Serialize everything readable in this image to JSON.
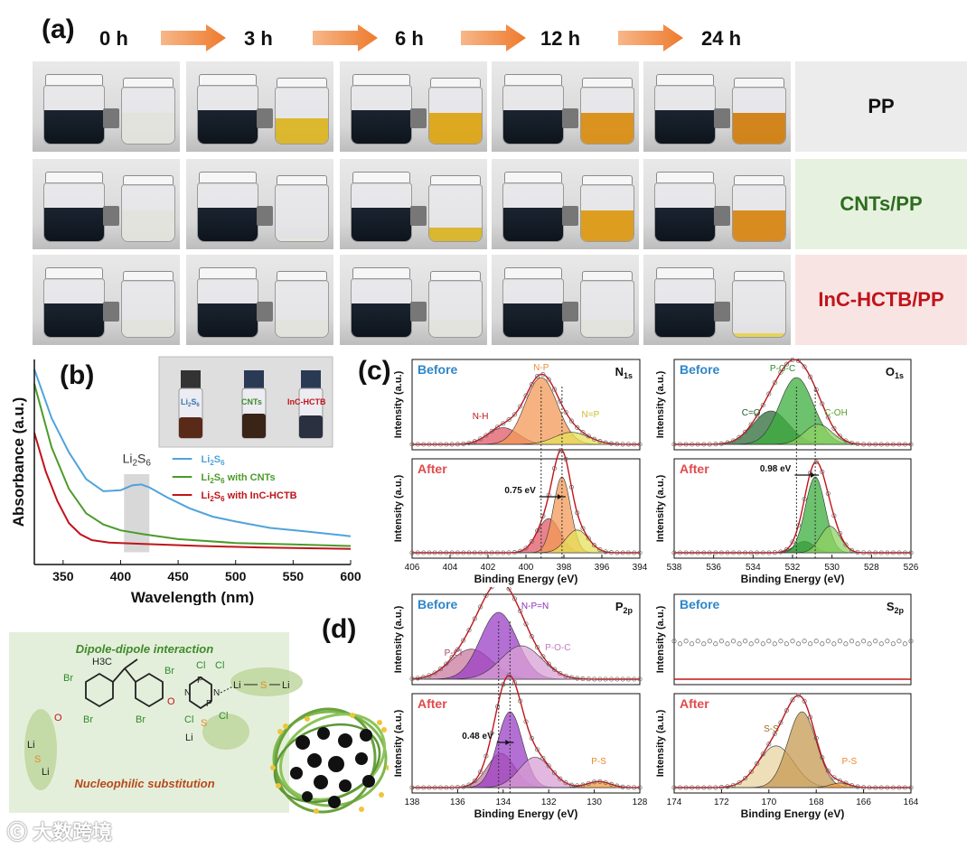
{
  "panel_a": {
    "letter": "(a)",
    "times": [
      "0 h",
      "3 h",
      "6 h",
      "12 h",
      "24 h"
    ],
    "rows": [
      {
        "label": "PP",
        "label_color": "#111111",
        "bg": "#ececec",
        "right_colors": [
          "#e2e2dc",
          "#d9b21a",
          "#dba20a",
          "#d88a08",
          "#cf7a06"
        ],
        "right_level": [
          0.55,
          0.45,
          0.55,
          0.55,
          0.55
        ]
      },
      {
        "label": "CNTs/PP",
        "label_color": "#2e6b1f",
        "bg": "#e6f2df",
        "right_colors": [
          "#e2e2dc",
          "#e6e6da",
          "#d8b21c",
          "#dc960a",
          "#d6820a"
        ],
        "right_level": [
          0.55,
          0.05,
          0.25,
          0.55,
          0.55
        ]
      },
      {
        "label": "InC-HCTB/PP",
        "label_color": "#c0141a",
        "bg": "#f9e4e4",
        "right_colors": [
          "#e2e2dc",
          "#e2e2dc",
          "#e2e2dc",
          "#e2e2dc",
          "#e8d04a"
        ],
        "right_level": [
          0.3,
          0.3,
          0.3,
          0.3,
          0.06
        ]
      }
    ]
  },
  "panel_b": {
    "letter": "(b)",
    "inset_labels": [
      "Li2S6",
      "CNTs",
      "InC-HCTB"
    ],
    "annotation": "Li2S6"
  },
  "panel_c": {
    "letter": "(c)"
  },
  "panel_d": {
    "letter": "(d)",
    "dipole_text": "Dipole-dipole interaction",
    "nucleophilic_text": "Nucleophilic substitution",
    "atoms": {
      "br": "Br",
      "o": "O",
      "li": "Li",
      "s": "S",
      "cl": "Cl",
      "p": "P",
      "n": "N",
      "h3c": "H3C"
    }
  },
  "watermark": "大数跨境",
  "chart_data": [
    {
      "type": "line",
      "title": "",
      "xlabel": "Wavelength (nm)",
      "ylabel": "Absorbance (a.u.)",
      "xlim": [
        325,
        600
      ],
      "xticks": [
        350,
        400,
        450,
        500,
        550,
        600
      ],
      "highlight_band": [
        403,
        425
      ],
      "series": [
        {
          "name": "Li2S6",
          "color": "#4fa3dc",
          "x": [
            325,
            340,
            355,
            370,
            385,
            400,
            410,
            418,
            425,
            440,
            460,
            480,
            500,
            530,
            560,
            600
          ],
          "y": [
            4.0,
            3.0,
            2.3,
            1.75,
            1.5,
            1.52,
            1.62,
            1.64,
            1.58,
            1.38,
            1.15,
            0.98,
            0.88,
            0.75,
            0.68,
            0.58
          ]
        },
        {
          "name": "Li2S6 with CNTs",
          "color": "#4c9a2a",
          "x": [
            325,
            340,
            355,
            370,
            385,
            400,
            420,
            450,
            500,
            550,
            600
          ],
          "y": [
            3.7,
            2.4,
            1.55,
            1.05,
            0.82,
            0.7,
            0.62,
            0.52,
            0.44,
            0.41,
            0.38
          ]
        },
        {
          "name": "Li2S6 with InC-HCTB",
          "color": "#c0141a",
          "x": [
            325,
            335,
            345,
            355,
            365,
            375,
            390,
            420,
            470,
            520,
            600
          ],
          "y": [
            2.7,
            1.9,
            1.3,
            0.85,
            0.62,
            0.5,
            0.45,
            0.42,
            0.38,
            0.35,
            0.32
          ]
        }
      ],
      "legend": [
        "Li2S6",
        "Li2S6 with CNTs",
        "Li2S6 with InC-HCTB"
      ]
    },
    {
      "type": "line",
      "title": "N1s",
      "xlabel": "Binding Energy (eV)",
      "ylabel": "Intensity (a.u.)",
      "xlim": [
        406,
        394
      ],
      "xticks": [
        406,
        404,
        402,
        400,
        398,
        396,
        394
      ],
      "before": {
        "label": "Before",
        "peaks": [
          {
            "name": "N-H",
            "center": 401.2,
            "height": 0.25,
            "width": 0.8,
            "color": "#e05a67"
          },
          {
            "name": "N-P",
            "center": 399.2,
            "height": 1.0,
            "width": 0.85,
            "color": "#f39a57"
          },
          {
            "name": "N=P",
            "center": 397.6,
            "height": 0.18,
            "width": 0.9,
            "color": "#e6e05a"
          }
        ]
      },
      "after": {
        "label": "After",
        "shift": "0.75 eV",
        "peaks": [
          {
            "name": "N-H",
            "center": 398.8,
            "height": 0.45,
            "width": 0.6,
            "color": "#e05a67"
          },
          {
            "name": "N-P",
            "center": 398.1,
            "height": 1.0,
            "width": 0.45,
            "color": "#f39a57"
          },
          {
            "name": "N=P",
            "center": 397.3,
            "height": 0.3,
            "width": 0.6,
            "color": "#e6e05a"
          }
        ]
      }
    },
    {
      "type": "line",
      "title": "O1s",
      "xlabel": "Binding Energy (eV)",
      "ylabel": "Intensity (a.u.)",
      "xlim": [
        538,
        526
      ],
      "xticks": [
        538,
        536,
        534,
        532,
        530,
        528,
        526
      ],
      "before": {
        "label": "Before",
        "peaks": [
          {
            "name": "C=O",
            "center": 533.1,
            "height": 0.5,
            "width": 0.9,
            "color": "#2e6b3a"
          },
          {
            "name": "P-O-C",
            "center": 531.8,
            "height": 1.0,
            "width": 0.85,
            "color": "#3cae3c"
          },
          {
            "name": "C-OH",
            "center": 530.7,
            "height": 0.3,
            "width": 0.7,
            "color": "#8fd163"
          }
        ]
      },
      "after": {
        "label": "After",
        "shift": "0.98 eV",
        "peaks": [
          {
            "name": "C=O",
            "center": 531.4,
            "height": 0.15,
            "width": 0.5,
            "color": "#2e6b3a"
          },
          {
            "name": "P-O-C",
            "center": 530.85,
            "height": 1.0,
            "width": 0.5,
            "color": "#3cae3c"
          },
          {
            "name": "C-OH",
            "center": 530.1,
            "height": 0.35,
            "width": 0.5,
            "color": "#8fd163"
          }
        ]
      }
    },
    {
      "type": "line",
      "title": "P2p",
      "xlabel": "Binding Energy (eV)",
      "ylabel": "Intensity (a.u.)",
      "xlim": [
        138,
        128
      ],
      "xticks": [
        138,
        136,
        134,
        132,
        130,
        128
      ],
      "before": {
        "label": "Before",
        "peaks": [
          {
            "name": "P-Cl",
            "center": 135.4,
            "height": 0.45,
            "width": 0.9,
            "color": "#c97aa0"
          },
          {
            "name": "N-P=N",
            "center": 134.2,
            "height": 1.0,
            "width": 0.8,
            "color": "#9b3fc6"
          },
          {
            "name": "P-O-C",
            "center": 133.2,
            "height": 0.5,
            "width": 0.9,
            "color": "#d9a0d6"
          }
        ]
      },
      "after": {
        "label": "After",
        "shift": "0.48 eV",
        "peaks": [
          {
            "name": "P-Cl",
            "center": 134.1,
            "height": 0.45,
            "width": 0.6,
            "color": "#c97aa0"
          },
          {
            "name": "N-P=N",
            "center": 133.7,
            "height": 1.0,
            "width": 0.55,
            "color": "#9b3fc6"
          },
          {
            "name": "P-O-C",
            "center": 132.6,
            "height": 0.4,
            "width": 0.7,
            "color": "#d9a0d6"
          },
          {
            "name": "P-S",
            "center": 129.8,
            "height": 0.08,
            "width": 0.5,
            "color": "#f39a3a"
          }
        ]
      }
    },
    {
      "type": "line",
      "title": "S2p",
      "xlabel": "Binding Energy (eV)",
      "ylabel": "Intensity (a.u.)",
      "xlim": [
        174,
        164
      ],
      "xticks": [
        174,
        172,
        170,
        168,
        166,
        164
      ],
      "before": {
        "label": "Before",
        "peaks": []
      },
      "after": {
        "label": "After",
        "peaks": [
          {
            "name": "S-S",
            "center": 169.7,
            "height": 0.55,
            "width": 0.75,
            "color": "#e8d4a0"
          },
          {
            "name": "S-S",
            "center": 168.6,
            "height": 1.0,
            "width": 0.6,
            "color": "#c69a52"
          },
          {
            "name": "P-S",
            "center": 167.0,
            "height": 0.06,
            "width": 0.4,
            "color": "#f39a3a"
          }
        ]
      }
    }
  ]
}
